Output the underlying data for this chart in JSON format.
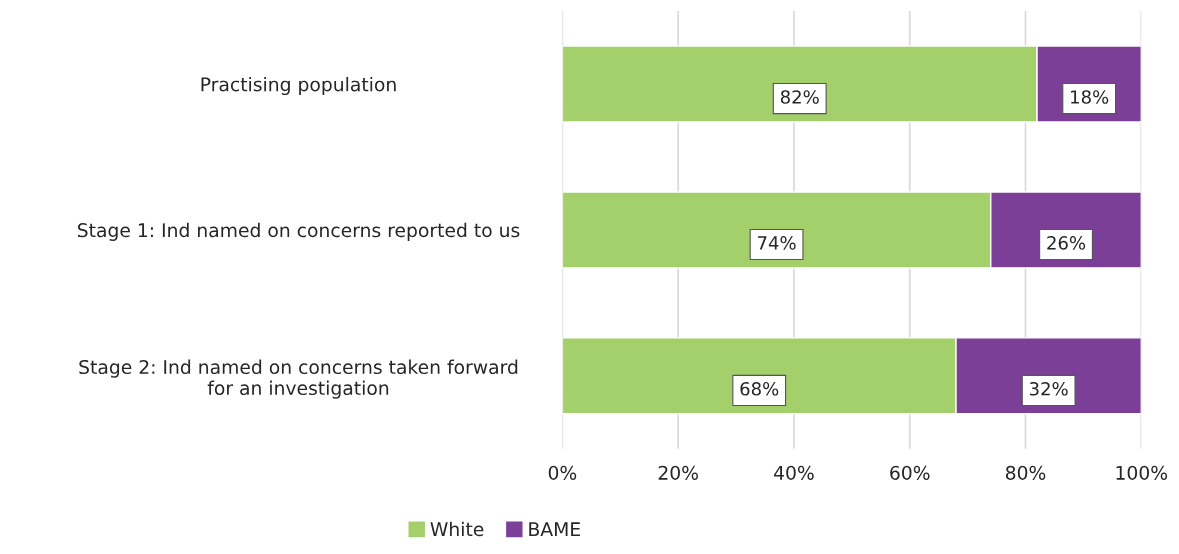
{
  "chart_data": {
    "type": "bar",
    "orientation": "horizontal",
    "stacked": true,
    "categories": [
      "Practising population",
      "Stage 1: Ind named on concerns reported to us",
      "Stage 2: Ind named on concerns taken forward\nfor an investigation"
    ],
    "series": [
      {
        "name": "White",
        "color": "#a3d06b",
        "values": [
          82,
          74,
          68
        ],
        "value_labels": [
          "82%",
          "74%",
          "68%"
        ]
      },
      {
        "name": "BAME",
        "color": "#7b3f98",
        "values": [
          18,
          26,
          32
        ],
        "value_labels": [
          "18%",
          "26%",
          "32%"
        ]
      }
    ],
    "xlim": [
      0,
      100
    ],
    "xticks": [
      {
        "value": 0,
        "label": "0%"
      },
      {
        "value": 20,
        "label": "20%"
      },
      {
        "value": 40,
        "label": "40%"
      },
      {
        "value": 60,
        "label": "60%"
      },
      {
        "value": 80,
        "label": "80%"
      },
      {
        "value": 100,
        "label": "100%"
      }
    ],
    "grid": "x",
    "legend": "bottom"
  }
}
